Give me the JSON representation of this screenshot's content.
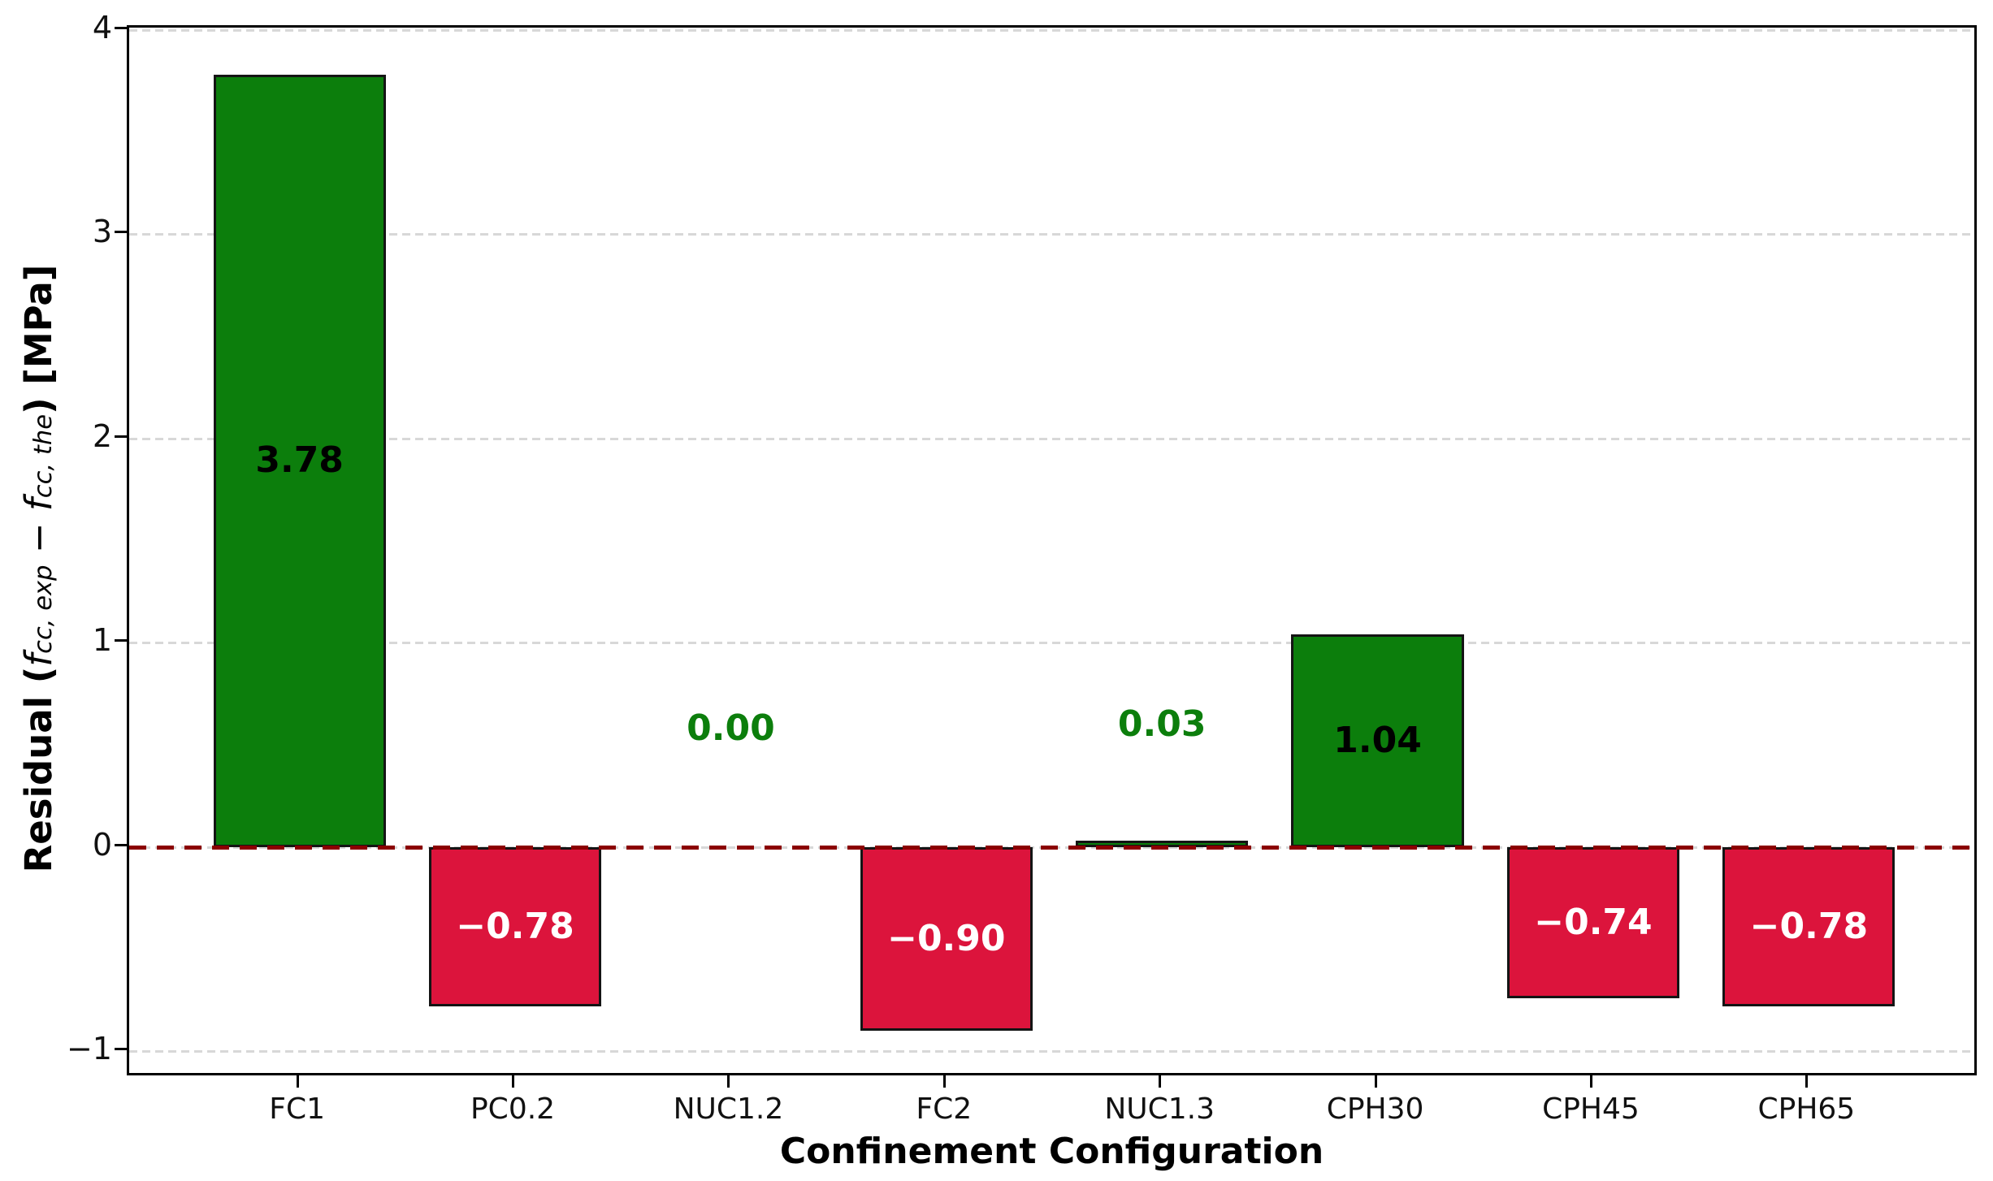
{
  "chart_data": {
    "type": "bar",
    "title": "",
    "xlabel": "Confinement Configuration",
    "ylabel_text": "Residual (f_cc,exp − f_cc,the) [MPa]",
    "ylabel_parts": {
      "prefix": "Residual (",
      "f1": "f",
      "sub1": "cc, exp",
      "minus": " − ",
      "f2": "f",
      "sub2": "cc, the",
      "suffix": ") [MPa]"
    },
    "categories": [
      "FC1",
      "PC0.2",
      "NUC1.2",
      "FC2",
      "NUC1.3",
      "CPH30",
      "CPH45",
      "CPH65"
    ],
    "values": [
      3.78,
      -0.78,
      0.0,
      -0.9,
      0.03,
      1.04,
      -0.74,
      -0.78
    ],
    "bar_labels": [
      "3.78",
      "−0.78",
      "0.00",
      "−0.90",
      "0.03",
      "1.04",
      "−0.74",
      "−0.78"
    ],
    "label_text_colors": [
      "#000000",
      "#ffffff",
      "#0c7e0c",
      "#ffffff",
      "#0c7e0c",
      "#000000",
      "#ffffff",
      "#ffffff"
    ],
    "label_y": [
      1.89,
      -0.39,
      0.58,
      -0.45,
      0.6,
      0.52,
      -0.37,
      -0.39
    ],
    "positive_color": "#0c7e0c",
    "negative_color": "#dc143c",
    "bar_edge_color": "#141414",
    "zero_line_color": "#8b0000",
    "grid_color": "#d8d8d8",
    "grid": true,
    "legend": "none",
    "ylim": [
      -1.13,
      4.01
    ],
    "yticks": [
      -1,
      0,
      1,
      2,
      3,
      4
    ],
    "ytick_labels": [
      "−1",
      "0",
      "1",
      "2",
      "3",
      "4"
    ],
    "bar_width_fraction": 0.8,
    "x_edge_padding": 0.79
  }
}
